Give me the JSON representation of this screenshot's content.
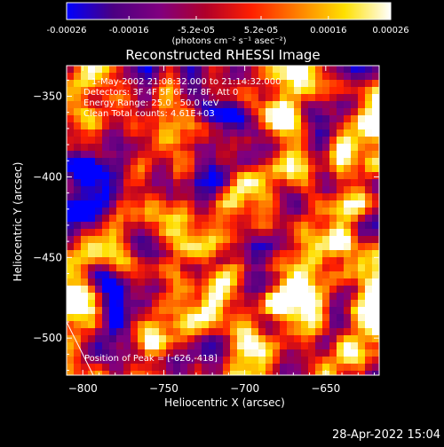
{
  "colorbar": {
    "ticks": [
      "-0.00026",
      "-0.00016",
      "-5.2e-05",
      "5.2e-05",
      "0.00016",
      "0.00026"
    ],
    "tick_values": [
      -0.00026,
      -0.00016,
      -5.2e-05,
      5.2e-05,
      0.00016,
      0.00026
    ],
    "range": [
      -0.00026,
      0.00026
    ],
    "units_label": "(photons cm⁻² s⁻¹ asec⁻²)",
    "colormap": [
      "#0000ff",
      "#4b0082",
      "#800080",
      "#b0002a",
      "#ff2000",
      "#ff8000",
      "#ffe000",
      "#ffffff"
    ]
  },
  "chart_data": {
    "type": "heatmap",
    "title": "Reconstructed RHESSI Image",
    "xlabel": "Heliocentric X (arcsec)",
    "ylabel": "Heliocentric Y (arcsec)",
    "xlim": [
      -810,
      -617
    ],
    "ylim": [
      -523,
      -331
    ],
    "x_ticks": [
      -800,
      -750,
      -700,
      -650
    ],
    "y_ticks": [
      -350,
      -400,
      -450,
      -500
    ],
    "x_tick_labels": [
      "−800",
      "−750",
      "−700",
      "−650"
    ],
    "y_tick_labels": [
      "−350",
      "−400",
      "−450",
      "−500"
    ],
    "value_range": [
      -0.00026,
      0.00026
    ],
    "peak": [
      -626,
      -418
    ],
    "annotations": {
      "time": "1-May-2002 21:08:32.000 to 21:14:32.000",
      "detectors": "Detectors: 3F 4F 5F 6F 7F 8F, Att 0",
      "energy": "Energy Range: 25.0 - 50.0 keV",
      "clean": "Clean     Total counts: 4.61E+03",
      "peak_label": "Position of Peak = [-626,-418]"
    }
  },
  "footer": {
    "timestamp": "28-Apr-2022 15:04"
  }
}
